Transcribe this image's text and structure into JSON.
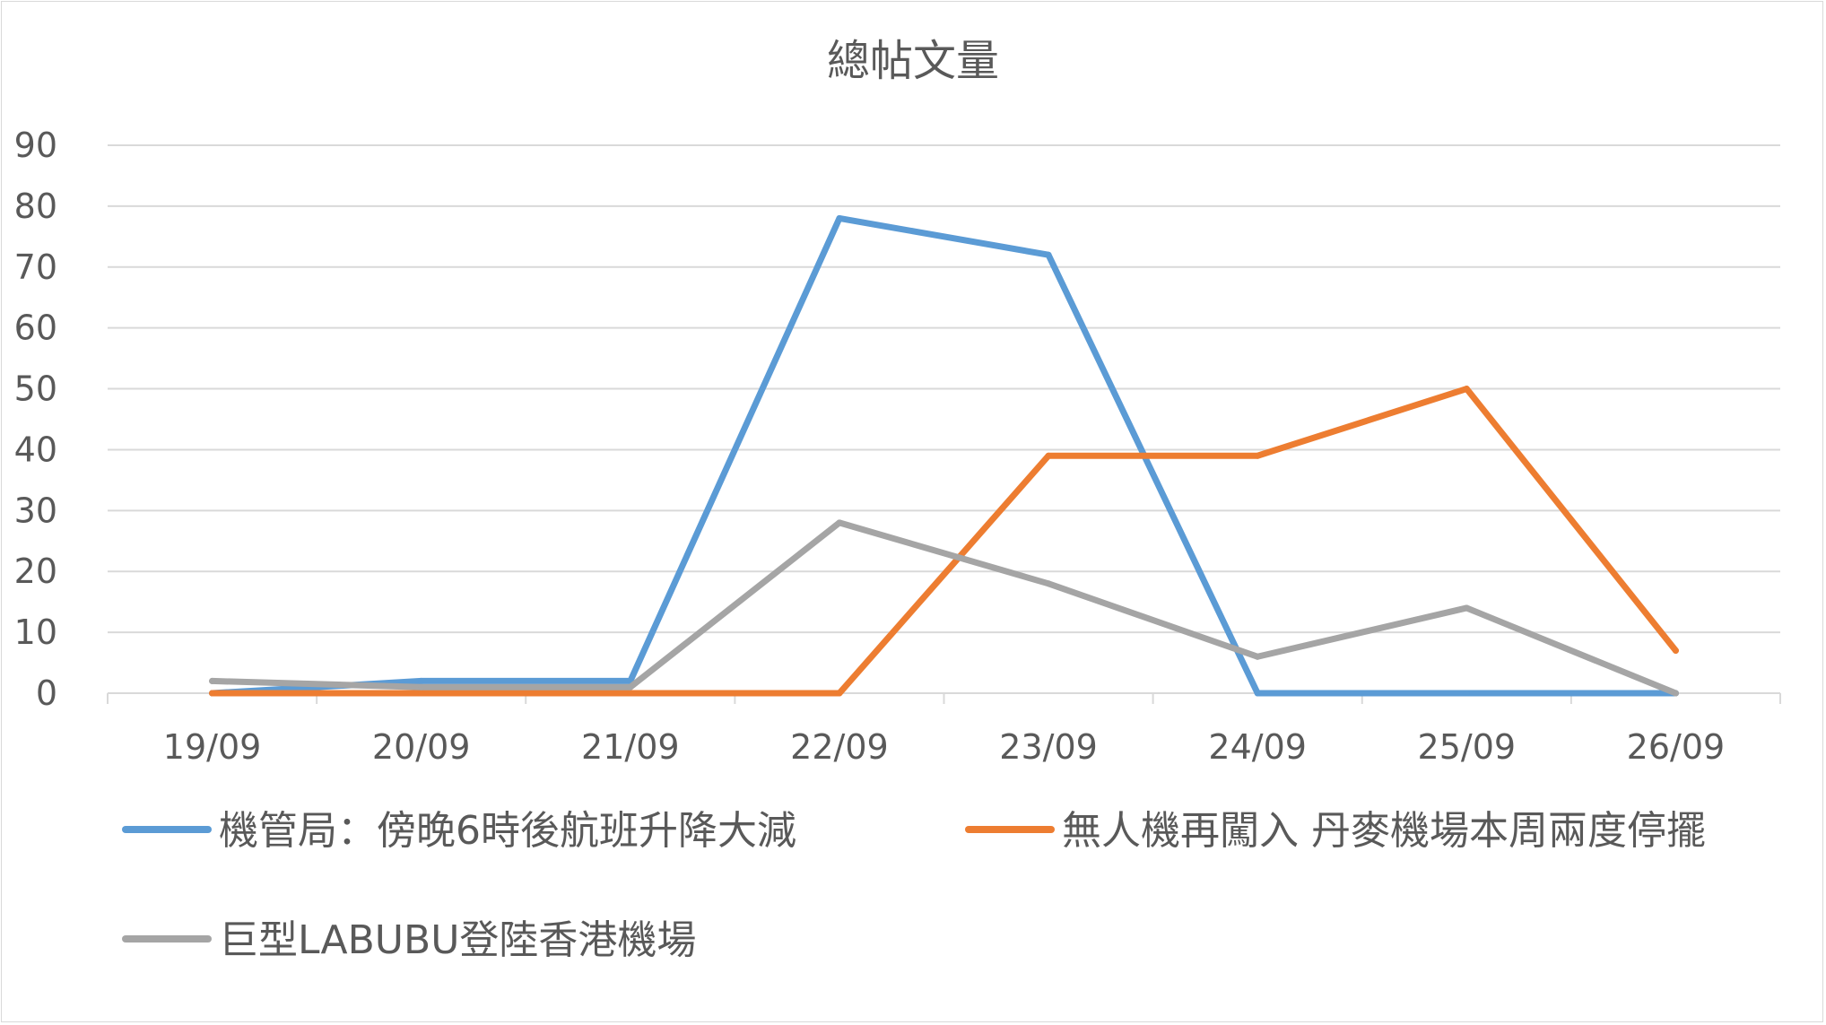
{
  "chart_data": {
    "type": "line",
    "title": "總帖文量",
    "xlabel": "",
    "ylabel": "",
    "categories": [
      "19/09",
      "20/09",
      "21/09",
      "22/09",
      "23/09",
      "24/09",
      "25/09",
      "26/09"
    ],
    "ylim": [
      0,
      90
    ],
    "yticks": [
      0,
      10,
      20,
      30,
      40,
      50,
      60,
      70,
      80,
      90
    ],
    "grid": true,
    "legend_position": "bottom",
    "series": [
      {
        "name": "機管局：傍晚6時後航班升降大減",
        "color": "#5b9bd5",
        "values": [
          0,
          2,
          2,
          78,
          72,
          0,
          0,
          0
        ]
      },
      {
        "name": "無人機再闖入 丹麥機場本周兩度停擺",
        "color": "#ed7d31",
        "values": [
          0,
          0,
          0,
          0,
          39,
          39,
          50,
          7
        ]
      },
      {
        "name": "巨型LABUBU登陸香港機場",
        "color": "#a5a5a5",
        "values": [
          2,
          1,
          1,
          28,
          18,
          6,
          14,
          0
        ]
      }
    ]
  }
}
